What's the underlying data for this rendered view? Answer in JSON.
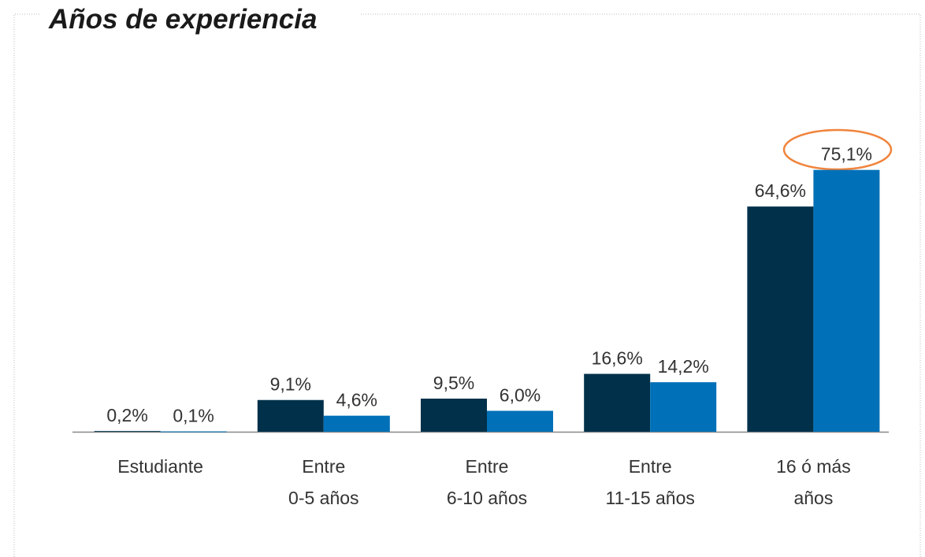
{
  "chart_data": {
    "type": "bar",
    "title": "Años de experiencia",
    "categories": [
      "Estudiante",
      "Entre\n0-5 años",
      "Entre\n6-10 años",
      "Entre\n11-15 años",
      "16 ó más\naños"
    ],
    "series": [
      {
        "color": "#00304a",
        "values": [
          0.2,
          9.1,
          9.5,
          16.6,
          64.6
        ],
        "value_labels": [
          "0,2%",
          "9,1%",
          "9,5%",
          "16,6%",
          "64,6%"
        ]
      },
      {
        "color": "#0070b8",
        "values": [
          0.1,
          4.6,
          6.0,
          14.2,
          75.1
        ],
        "value_labels": [
          "0,1%",
          "4,6%",
          "6,0%",
          "14,2%",
          "75,1%"
        ]
      }
    ],
    "ylim": [
      0,
      80
    ]
  }
}
